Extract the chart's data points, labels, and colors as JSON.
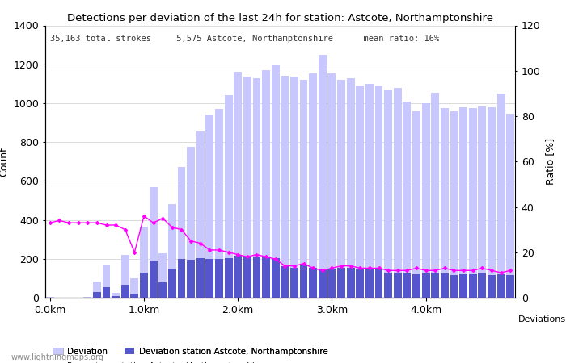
{
  "title": "Detections per deviation of the last 24h for station: Astcote, Northamptonshire",
  "subtitle": "35,163 total strokes     5,575 Astcote, Northamptonshire      mean ratio: 16%",
  "ylabel_left": "Count",
  "ylabel_right": "Ratio [%]",
  "xlabel": "Deviations",
  "watermark": "www.lightningmaps.org",
  "ylim_left": [
    0,
    1400
  ],
  "ylim_right": [
    0,
    120
  ],
  "xtick_labels": [
    "0.0km",
    "1.0km",
    "2.0km",
    "3.0km",
    "4.0km"
  ],
  "xtick_positions": [
    0,
    10,
    20,
    30,
    40
  ],
  "bar_width": 0.85,
  "deviation_all": [
    5,
    2,
    1,
    1,
    3,
    85,
    170,
    25,
    220,
    100,
    365,
    570,
    230,
    480,
    670,
    775,
    855,
    940,
    970,
    1040,
    1160,
    1135,
    1130,
    1170,
    1200,
    1140,
    1135,
    1120,
    1155,
    1250,
    1155,
    1120,
    1130,
    1090,
    1100,
    1090,
    1065,
    1080,
    1010,
    960,
    1000,
    1055,
    975,
    960,
    980,
    975,
    985,
    980,
    1050,
    945
  ],
  "deviation_station": [
    1,
    0,
    0,
    0,
    1,
    28,
    55,
    8,
    65,
    20,
    130,
    190,
    80,
    150,
    200,
    195,
    205,
    200,
    200,
    205,
    215,
    210,
    210,
    210,
    205,
    160,
    155,
    165,
    155,
    150,
    150,
    155,
    155,
    145,
    145,
    145,
    130,
    130,
    125,
    120,
    125,
    130,
    125,
    115,
    120,
    120,
    125,
    115,
    120,
    115
  ],
  "ratio_pct": [
    33,
    34,
    33,
    33,
    33,
    33,
    32,
    32,
    30,
    20,
    36,
    33,
    35,
    31,
    30,
    25,
    24,
    21,
    21,
    20,
    19,
    18,
    19,
    18,
    17,
    14,
    14,
    15,
    13,
    12,
    13,
    14,
    14,
    13,
    13,
    13,
    12,
    12,
    12,
    13,
    12,
    12,
    13,
    12,
    12,
    12,
    13,
    12,
    11,
    12
  ],
  "color_all_bar": "#c8c8ff",
  "color_station_bar": "#5555cc",
  "color_ratio_line": "#ff00ff",
  "legend_all": "Deviation",
  "legend_station": "Deviation station Astcote, Northamptonshire",
  "legend_ratio": "Percentage station Astcote, Northamptonshire"
}
